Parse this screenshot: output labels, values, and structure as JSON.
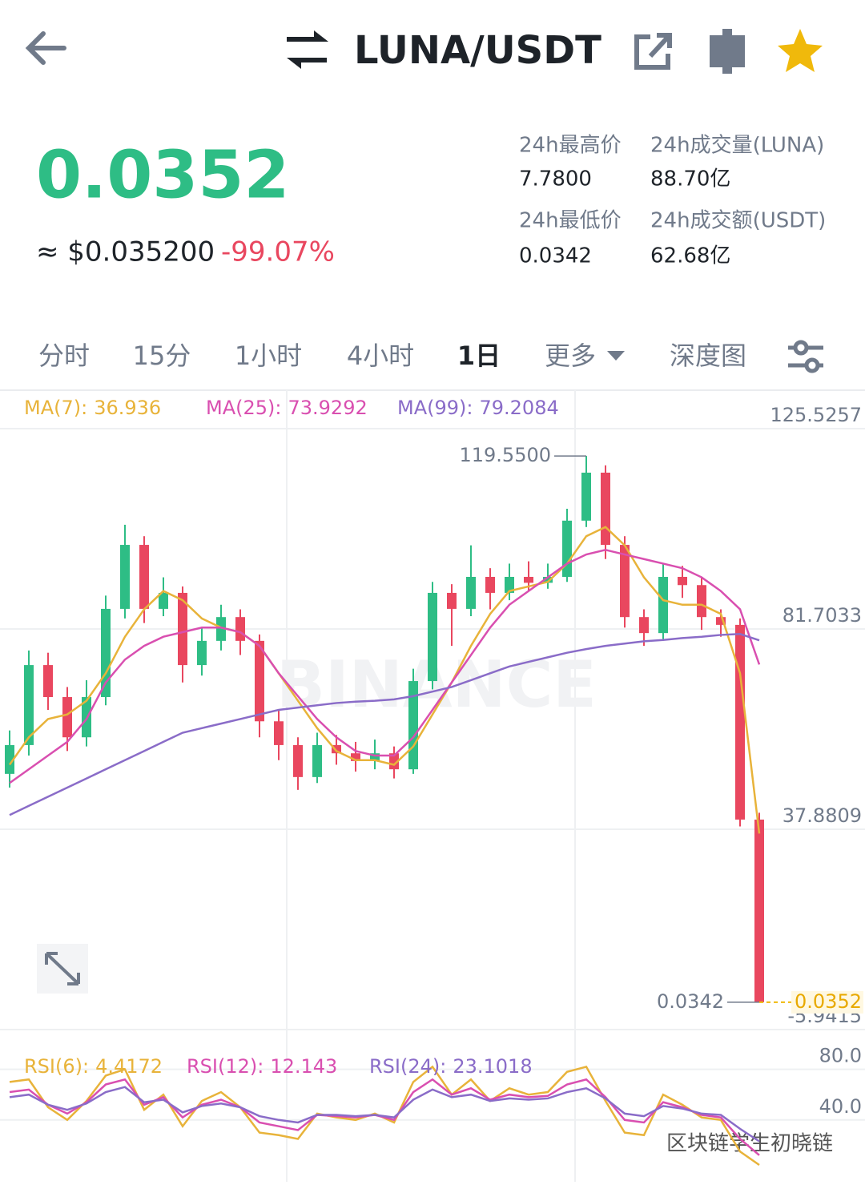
{
  "header": {
    "title": "LUNA/USDT"
  },
  "ticker": {
    "price": "0.0352",
    "usd": "≈ $0.035200",
    "change": "-99.07%",
    "stats": [
      {
        "label": "24h最高价",
        "value": "7.7800"
      },
      {
        "label": "24h成交量(LUNA)",
        "value": "88.70亿"
      },
      {
        "label": "24h最低价",
        "value": "0.0342"
      },
      {
        "label": "24h成交额(USDT)",
        "value": "62.68亿"
      }
    ]
  },
  "tabs": {
    "items": [
      "分时",
      "15分",
      "1小时",
      "4小时",
      "1日",
      "更多",
      "深度图"
    ],
    "active": 4
  },
  "chart_data": [
    {
      "type": "candlestick",
      "watermark": "BINANCE",
      "grid": true,
      "up_color": "#2ebd85",
      "down_color": "#e9475f",
      "ylim": [
        -5.9415,
        125.5257
      ],
      "yticks": [
        125.5257,
        81.7033,
        37.8809,
        -5.9415
      ],
      "candles": [
        [
          50.0,
          59.5,
          47.0,
          56.3
        ],
        [
          56.3,
          77.0,
          54.0,
          73.8
        ],
        [
          73.8,
          76.5,
          64.0,
          66.8
        ],
        [
          66.8,
          69.0,
          55.0,
          58.0
        ],
        [
          58.0,
          70.5,
          56.0,
          66.8
        ],
        [
          66.8,
          89.0,
          65.0,
          86.1
        ],
        [
          86.1,
          104.5,
          84.0,
          100.1
        ],
        [
          100.1,
          102.0,
          83.0,
          86.1
        ],
        [
          86.1,
          93.0,
          84.5,
          89.6
        ],
        [
          89.6,
          91.0,
          70.0,
          73.8
        ],
        [
          73.8,
          82.0,
          71.5,
          79.1
        ],
        [
          79.1,
          87.0,
          77.0,
          84.3
        ],
        [
          84.3,
          86.0,
          76.0,
          79.1
        ],
        [
          79.1,
          80.5,
          58.0,
          61.5
        ],
        [
          61.5,
          64.0,
          53.0,
          56.3
        ],
        [
          56.3,
          58.0,
          46.5,
          49.3
        ],
        [
          49.3,
          59.0,
          48.0,
          56.3
        ],
        [
          56.3,
          58.5,
          52.0,
          54.5
        ],
        [
          54.5,
          57.0,
          50.5,
          52.8
        ],
        [
          52.8,
          57.5,
          51.0,
          54.5
        ],
        [
          54.5,
          56.0,
          49.0,
          51.0
        ],
        [
          51.0,
          73.0,
          50.0,
          70.3
        ],
        [
          70.3,
          92.0,
          68.5,
          89.6
        ],
        [
          89.6,
          91.5,
          78.0,
          86.1
        ],
        [
          86.1,
          100.0,
          84.5,
          93.1
        ],
        [
          93.1,
          95.0,
          86.0,
          89.6
        ],
        [
          89.6,
          96.0,
          88.0,
          93.1
        ],
        [
          93.1,
          96.5,
          90.0,
          91.8
        ],
        [
          91.8,
          96.0,
          90.5,
          93.1
        ],
        [
          93.1,
          108.0,
          92.0,
          105.4
        ],
        [
          105.4,
          119.55,
          104.0,
          115.9
        ],
        [
          115.9,
          117.5,
          97.0,
          100.1
        ],
        [
          100.1,
          102.0,
          82.0,
          84.3
        ],
        [
          84.3,
          86.0,
          78.0,
          80.8
        ],
        [
          80.8,
          96.0,
          79.5,
          93.1
        ],
        [
          93.1,
          95.5,
          88.5,
          91.3
        ],
        [
          91.3,
          93.0,
          81.5,
          84.3
        ],
        [
          84.3,
          86.0,
          80.0,
          82.6
        ],
        [
          82.6,
          84.0,
          38.5,
          40.0
        ],
        [
          40.0,
          41.5,
          0.0342,
          0.0352
        ]
      ],
      "series": [
        {
          "name": "MA(7):",
          "color": "#e8b33a",
          "values": [
            52,
            58,
            62,
            63,
            66,
            72,
            80,
            86,
            90,
            88,
            84,
            82,
            81,
            78,
            72,
            66,
            60,
            55,
            53,
            53,
            52,
            56,
            63,
            70,
            78,
            85,
            90,
            91,
            92,
            96,
            102,
            104,
            100,
            93,
            88,
            87,
            87,
            85,
            72,
            36.936
          ]
        },
        {
          "name": "MA(25):",
          "color": "#d94fb0",
          "values": [
            48,
            51,
            54,
            57,
            62,
            70,
            75,
            78,
            80,
            81,
            82,
            82,
            81,
            78,
            72,
            67,
            62,
            58,
            55,
            54,
            54,
            58,
            64,
            70,
            76,
            82,
            87,
            90,
            93,
            96,
            98,
            99,
            98,
            97,
            96,
            95,
            93,
            90,
            86,
            73.9292
          ]
        },
        {
          "name": "MA(99):",
          "color": "#8a6cc8",
          "values": [
            41,
            43,
            45,
            47,
            49,
            51,
            53,
            55,
            57,
            59,
            60,
            61,
            62,
            63,
            64,
            64.5,
            65,
            65.5,
            65.8,
            66,
            66.3,
            67,
            68,
            69,
            70.5,
            72,
            73.5,
            74.5,
            75.5,
            76.5,
            77.3,
            78,
            78.5,
            79,
            79.3,
            79.7,
            80,
            80.4,
            80.6,
            79.2084
          ]
        }
      ],
      "high_mark": {
        "value": 119.55,
        "label": "119.5500"
      },
      "low_mark": 0.0342,
      "last_price": 0.0352
    },
    {
      "type": "line",
      "ylim": [
        0,
        100
      ],
      "yticks": [
        {
          "value": 80,
          "label": "80.0"
        },
        {
          "value": 40,
          "label": "40.0"
        }
      ],
      "series": [
        {
          "name": "RSI(6):",
          "color": "#e8b33a",
          "values": [
            70,
            72,
            50,
            40,
            55,
            75,
            80,
            48,
            60,
            35,
            55,
            62,
            50,
            30,
            28,
            25,
            45,
            42,
            40,
            45,
            38,
            70,
            82,
            60,
            72,
            55,
            65,
            60,
            62,
            78,
            82,
            55,
            30,
            28,
            60,
            52,
            42,
            40,
            15,
            4.4172
          ]
        },
        {
          "name": "RSI(12):",
          "color": "#d94fb0",
          "values": [
            62,
            64,
            52,
            45,
            54,
            68,
            72,
            52,
            58,
            42,
            52,
            56,
            50,
            38,
            35,
            32,
            44,
            43,
            42,
            44,
            40,
            62,
            72,
            60,
            65,
            56,
            60,
            58,
            59,
            68,
            72,
            58,
            40,
            38,
            54,
            50,
            44,
            42,
            25,
            12.143
          ]
        },
        {
          "name": "RSI(24):",
          "color": "#8a6cc8",
          "values": [
            58,
            60,
            52,
            48,
            53,
            62,
            66,
            54,
            56,
            46,
            51,
            53,
            50,
            43,
            40,
            38,
            44,
            44,
            43,
            44,
            42,
            56,
            64,
            58,
            60,
            55,
            57,
            56,
            57,
            62,
            65,
            57,
            45,
            43,
            51,
            49,
            45,
            44,
            33,
            23.1018
          ]
        }
      ]
    }
  ],
  "watermark": "区块链学生初晓链"
}
